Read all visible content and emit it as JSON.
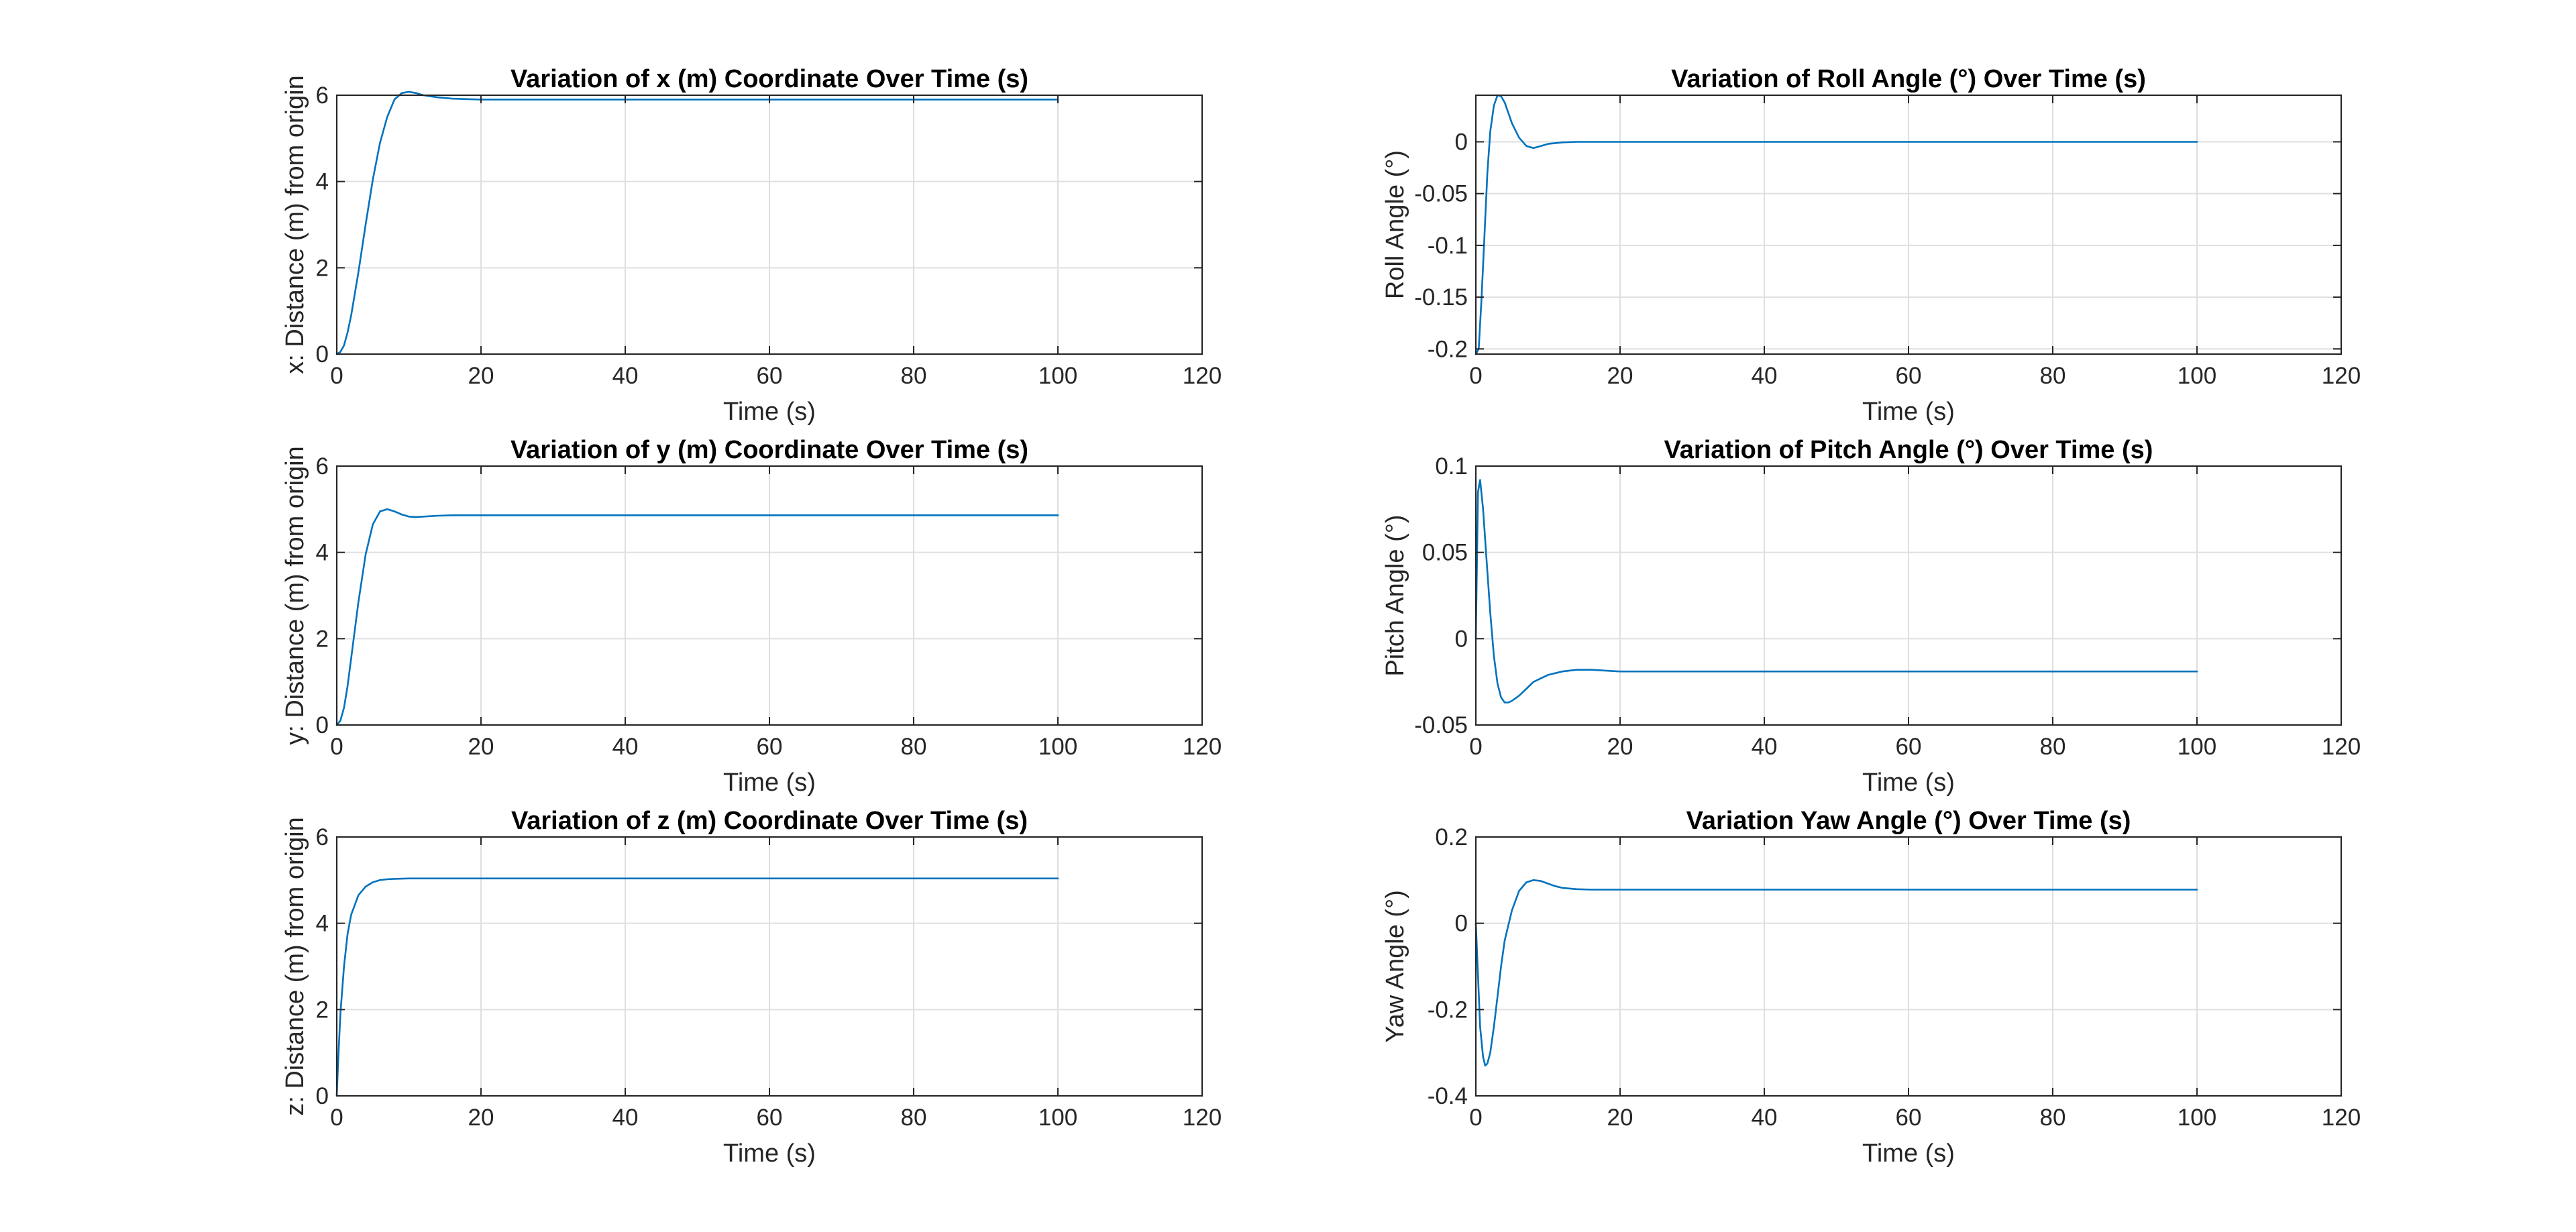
{
  "chart_data": [
    {
      "id": "x",
      "type": "line",
      "title": "Variation of x (m) Coordinate Over Time (s)",
      "xlabel": "Time (s)",
      "ylabel": "x: Distance (m) from origin",
      "xlim": [
        0,
        120
      ],
      "ylim": [
        0,
        6
      ],
      "xticks": [
        0,
        20,
        40,
        60,
        80,
        100,
        120
      ],
      "yticks": [
        0,
        2,
        4,
        6
      ],
      "ytick_labels": [
        "0",
        "2",
        "4",
        "6"
      ],
      "grid": true,
      "series_color": "#0072BD",
      "x": [
        0,
        0.5,
        1,
        1.5,
        2,
        3,
        4,
        5,
        6,
        7,
        8,
        9,
        10,
        11,
        12,
        14,
        16,
        18,
        20,
        25,
        30,
        40,
        60,
        80,
        100
      ],
      "y": [
        0,
        0.05,
        0.2,
        0.5,
        0.9,
        1.9,
        3.0,
        4.05,
        4.9,
        5.5,
        5.9,
        6.05,
        6.08,
        6.05,
        6.0,
        5.95,
        5.92,
        5.91,
        5.9,
        5.9,
        5.9,
        5.9,
        5.9,
        5.9,
        5.9
      ]
    },
    {
      "id": "roll",
      "type": "line",
      "title": "Variation of Roll Angle (°) Over Time (s)",
      "xlabel": "Time (s)",
      "ylabel": "Roll Angle (°)",
      "xlim": [
        0,
        120
      ],
      "ylim": [
        -0.205,
        0.045
      ],
      "xticks": [
        0,
        20,
        40,
        60,
        80,
        100,
        120
      ],
      "yticks": [
        -0.2,
        -0.15,
        -0.1,
        -0.05,
        0
      ],
      "ytick_labels": [
        "-0.2",
        "-0.15",
        "-0.1",
        "-0.05",
        "0"
      ],
      "grid": true,
      "series_color": "#0072BD",
      "x": [
        0,
        0.4,
        0.8,
        1.2,
        1.6,
        2,
        2.5,
        3,
        3.5,
        4,
        4.5,
        5,
        6,
        7,
        8,
        9,
        10,
        12,
        14,
        16,
        20,
        30,
        50,
        100
      ],
      "y": [
        -0.205,
        -0.2,
        -0.15,
        -0.09,
        -0.03,
        0.01,
        0.035,
        0.045,
        0.044,
        0.038,
        0.028,
        0.018,
        0.004,
        -0.004,
        -0.006,
        -0.004,
        -0.002,
        -0.0005,
        0,
        0,
        0,
        0,
        0,
        0
      ]
    },
    {
      "id": "y",
      "type": "line",
      "title": "Variation of y (m) Coordinate Over Time (s)",
      "xlabel": "Time (s)",
      "ylabel": "y: Distance (m) from origin",
      "xlim": [
        0,
        120
      ],
      "ylim": [
        0,
        6
      ],
      "xticks": [
        0,
        20,
        40,
        60,
        80,
        100,
        120
      ],
      "yticks": [
        0,
        2,
        4,
        6
      ],
      "ytick_labels": [
        "0",
        "2",
        "4",
        "6"
      ],
      "grid": true,
      "series_color": "#0072BD",
      "x": [
        0,
        0.5,
        1,
        1.5,
        2,
        2.5,
        3,
        4,
        5,
        6,
        7,
        8,
        9,
        10,
        11,
        12,
        14,
        16,
        20,
        30,
        50,
        100
      ],
      "y": [
        0,
        0.1,
        0.4,
        0.9,
        1.55,
        2.2,
        2.85,
        3.95,
        4.65,
        4.95,
        5.0,
        4.95,
        4.88,
        4.83,
        4.82,
        4.83,
        4.85,
        4.86,
        4.86,
        4.86,
        4.86,
        4.86
      ]
    },
    {
      "id": "pitch",
      "type": "line",
      "title": "Variation of Pitch Angle (°) Over Time (s)",
      "xlabel": "Time (s)",
      "ylabel": "Pitch Angle (°)",
      "xlim": [
        0,
        120
      ],
      "ylim": [
        -0.05,
        0.1
      ],
      "xticks": [
        0,
        20,
        40,
        60,
        80,
        100,
        120
      ],
      "yticks": [
        -0.05,
        0,
        0.05,
        0.1
      ],
      "ytick_labels": [
        "-0.05",
        "0",
        "0.05",
        "0.1"
      ],
      "grid": true,
      "series_color": "#0072BD",
      "x": [
        0,
        0.3,
        0.6,
        1,
        1.5,
        2,
        2.5,
        3,
        3.5,
        4,
        4.5,
        5,
        6,
        7,
        8,
        10,
        12,
        14,
        16,
        20,
        30,
        50,
        100
      ],
      "y": [
        0,
        0.085,
        0.092,
        0.075,
        0.045,
        0.015,
        -0.01,
        -0.026,
        -0.034,
        -0.037,
        -0.037,
        -0.036,
        -0.033,
        -0.029,
        -0.025,
        -0.021,
        -0.019,
        -0.018,
        -0.018,
        -0.019,
        -0.019,
        -0.019,
        -0.019
      ]
    },
    {
      "id": "z",
      "type": "line",
      "title": "Variation of z (m) Coordinate Over Time (s)",
      "xlabel": "Time (s)",
      "ylabel": "z: Distance (m) from origin",
      "xlim": [
        0,
        120
      ],
      "ylim": [
        0,
        6
      ],
      "xticks": [
        0,
        20,
        40,
        60,
        80,
        100,
        120
      ],
      "yticks": [
        0,
        2,
        4,
        6
      ],
      "ytick_labels": [
        "0",
        "2",
        "4",
        "6"
      ],
      "grid": true,
      "series_color": "#0072BD",
      "x": [
        0,
        0.2,
        0.5,
        1,
        1.5,
        2,
        3,
        4,
        5,
        6,
        7,
        8,
        10,
        12,
        15,
        20,
        50,
        100
      ],
      "y": [
        0,
        0.8,
        1.9,
        3.0,
        3.75,
        4.2,
        4.65,
        4.85,
        4.95,
        5.0,
        5.02,
        5.03,
        5.04,
        5.04,
        5.04,
        5.04,
        5.04,
        5.04
      ]
    },
    {
      "id": "yaw",
      "type": "line",
      "title": "Variation Yaw Angle (°) Over Time (s)",
      "xlabel": "Time (s)",
      "ylabel": "Yaw Angle (°)",
      "xlim": [
        0,
        120
      ],
      "ylim": [
        -0.4,
        0.2
      ],
      "xticks": [
        0,
        20,
        40,
        60,
        80,
        100,
        120
      ],
      "yticks": [
        -0.4,
        -0.2,
        0,
        0.2
      ],
      "ytick_labels": [
        "-0.4",
        "-0.2",
        "0",
        "0.2"
      ],
      "grid": true,
      "series_color": "#0072BD",
      "x": [
        0,
        0.3,
        0.6,
        1,
        1.3,
        1.6,
        2,
        2.5,
        3,
        3.5,
        4,
        5,
        6,
        7,
        8,
        9,
        10,
        11,
        12,
        14,
        16,
        20,
        30,
        50,
        100
      ],
      "y": [
        0,
        -0.12,
        -0.24,
        -0.31,
        -0.33,
        -0.325,
        -0.3,
        -0.24,
        -0.17,
        -0.1,
        -0.04,
        0.03,
        0.075,
        0.095,
        0.1,
        0.098,
        0.092,
        0.086,
        0.082,
        0.079,
        0.078,
        0.078,
        0.078,
        0.078,
        0.078
      ]
    }
  ]
}
